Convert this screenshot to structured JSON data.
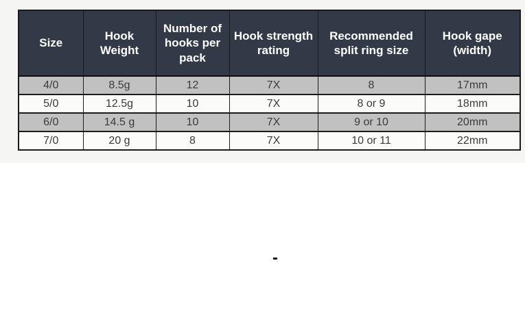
{
  "chart_data": {
    "type": "table",
    "title": "",
    "columns": [
      "Size",
      "Hook Weight",
      "Number of hooks per pack",
      "Hook strength rating",
      "Recommended split ring size",
      "Hook gape (width)"
    ],
    "rows": [
      [
        "4/0",
        "8.5g",
        "12",
        "7X",
        "8",
        "17mm"
      ],
      [
        "5/0",
        "12.5g",
        "10",
        "7X",
        "8 or 9",
        "18mm"
      ],
      [
        "6/0",
        "14.5 g",
        "10",
        "7X",
        "9 or 10",
        "20mm"
      ],
      [
        "7/0",
        "20 g",
        "8",
        "7X",
        "10 or 11",
        "22mm"
      ]
    ],
    "layout_hints": {
      "header_position": "top",
      "alternating_row_shading": "rows 1 and 3 shaded gray, rows 2 and 4 white",
      "grid": true
    }
  },
  "colors": {
    "header_bg": "#323947",
    "header_text": "#ffffff",
    "row_shaded_bg": "#c1c1c1",
    "row_plain_bg": "#fbfbfa",
    "border": "#1a1a1a",
    "cell_text": "#3a3a3a",
    "page_strip_bg": "#f5f5f3",
    "page_bg": "#ffffff"
  },
  "stray_mark": "-"
}
